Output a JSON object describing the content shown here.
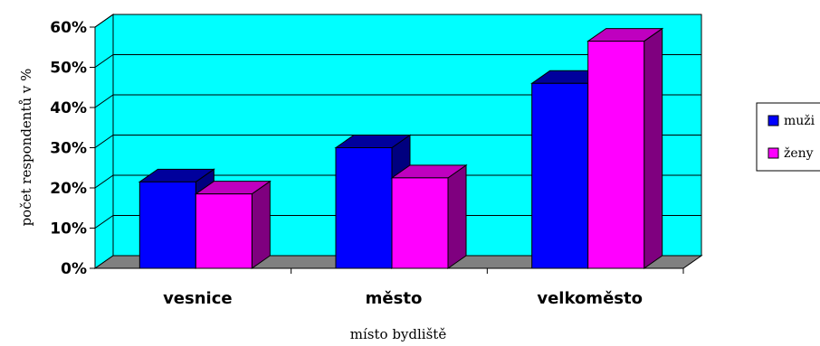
{
  "chart_data": {
    "type": "bar",
    "style": "3d-clustered",
    "categories": [
      "vesnice",
      "město",
      "velkoměsto"
    ],
    "series": [
      {
        "name": "muži",
        "values": [
          21.5,
          30,
          46
        ],
        "color": "#0000FF",
        "side_color": "#00007F",
        "top_color": "#00009C"
      },
      {
        "name": "ženy",
        "values": [
          18.5,
          22.5,
          56.5
        ],
        "color": "#FF00FF",
        "side_color": "#7F007F",
        "top_color": "#BF00BF"
      }
    ],
    "xlabel": "místo bydliště",
    "ylabel": "počet respondentů v %",
    "ylim": [
      0,
      60
    ],
    "yticks": [
      "0%",
      "10%",
      "20%",
      "30%",
      "40%",
      "50%",
      "60%"
    ],
    "grid": true,
    "legend_position": "right",
    "wall_color": "#00FFFF",
    "floor_color": "#808080"
  }
}
